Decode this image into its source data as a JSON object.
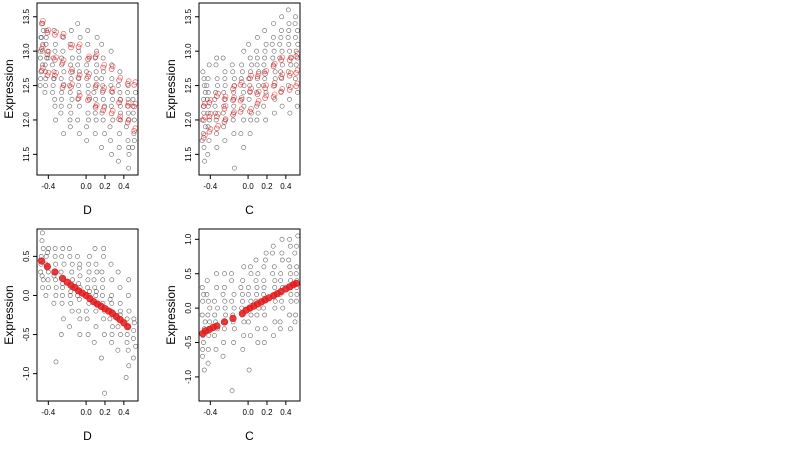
{
  "chart_data": [
    {
      "type": "scatter",
      "title": "",
      "xlabel": "D",
      "ylabel": "Expression",
      "xlim": [
        -0.52,
        0.55
      ],
      "ylim": [
        11.2,
        13.7
      ],
      "xticks": [
        -0.4,
        0.0,
        0.2,
        0.4
      ],
      "xtick_labels": [
        "-0.4",
        "0.0",
        "0.2",
        "0.4"
      ],
      "yticks": [
        11.5,
        12.0,
        12.5,
        13.0,
        13.5
      ],
      "ytick_labels": [
        "11.5",
        "12.0",
        "12.5",
        "13.0",
        "13.5"
      ],
      "series_colors": {
        "observed": "#333333",
        "fitted": "#e41a1c"
      },
      "observed_groups": [
        {
          "x": -0.47,
          "y": [
            12.8,
            13.0,
            13.2,
            13.4,
            12.6,
            13.1,
            12.9,
            13.3,
            12.7,
            13.0,
            12.5,
            13.2
          ]
        },
        {
          "x": -0.42,
          "y": [
            12.9,
            13.1,
            12.6,
            13.3,
            12.8,
            12.4,
            13.0,
            12.7,
            13.2,
            12.9,
            12.5
          ]
        },
        {
          "x": -0.34,
          "y": [
            12.6,
            12.9,
            13.1,
            12.4,
            12.2,
            12.8,
            13.3,
            12.5,
            12.7,
            13.0,
            12.3,
            12.0,
            12.6
          ]
        },
        {
          "x": -0.25,
          "y": [
            12.4,
            12.7,
            13.0,
            12.2,
            12.9,
            12.5,
            13.2,
            12.1,
            12.6,
            12.8,
            11.8,
            12.3
          ]
        },
        {
          "x": -0.16,
          "y": [
            12.3,
            12.6,
            12.9,
            13.1,
            12.0,
            12.5,
            12.8,
            12.2,
            13.3,
            12.4,
            12.7,
            11.9,
            12.1
          ]
        },
        {
          "x": -0.08,
          "y": [
            12.2,
            12.6,
            12.9,
            13.2,
            12.4,
            12.0,
            12.7,
            13.0,
            12.3,
            11.8,
            12.5,
            13.4,
            12.8
          ]
        },
        {
          "x": 0.02,
          "y": [
            12.1,
            12.5,
            12.8,
            13.1,
            12.3,
            12.6,
            11.9,
            12.9,
            12.4,
            13.3,
            12.0,
            12.7,
            11.7
          ]
        },
        {
          "x": 0.1,
          "y": [
            12.2,
            12.5,
            12.8,
            12.4,
            12.0,
            12.7,
            13.0,
            12.3,
            11.8,
            12.6,
            13.2,
            12.1,
            12.9
          ]
        },
        {
          "x": 0.18,
          "y": [
            12.0,
            12.3,
            12.6,
            12.9,
            11.8,
            12.5,
            12.2,
            13.1,
            12.4,
            11.6,
            12.7,
            12.1
          ]
        },
        {
          "x": 0.27,
          "y": [
            11.9,
            12.2,
            12.5,
            12.8,
            12.0,
            12.4,
            11.7,
            12.6,
            12.3,
            13.0,
            11.5
          ]
        },
        {
          "x": 0.35,
          "y": [
            11.8,
            12.1,
            12.4,
            12.7,
            11.6,
            12.2,
            12.0,
            12.5,
            11.4,
            12.3
          ]
        },
        {
          "x": 0.44,
          "y": [
            11.7,
            12.0,
            12.3,
            12.5,
            11.5,
            12.1,
            11.9,
            12.4,
            11.3,
            12.2,
            11.6
          ]
        },
        {
          "x": 0.51,
          "y": [
            11.8,
            12.1,
            12.3,
            11.6,
            12.0,
            12.4,
            11.7,
            12.2
          ]
        }
      ],
      "fitted_lines": [
        {
          "intercept": 12.95,
          "slope": -0.9
        },
        {
          "intercept": 12.6,
          "slope": -0.9
        },
        {
          "intercept": 12.3,
          "slope": -0.9
        }
      ]
    },
    {
      "type": "scatter",
      "title": "",
      "xlabel": "C",
      "ylabel": "Expression",
      "xlim": [
        -0.52,
        0.55
      ],
      "ylim": [
        11.2,
        13.7
      ],
      "xticks": [
        -0.4,
        0.0,
        0.2,
        0.4
      ],
      "xtick_labels": [
        "-0.4",
        "0.0",
        "0.2",
        "0.4"
      ],
      "yticks": [
        11.5,
        12.0,
        12.5,
        13.0,
        13.5
      ],
      "ytick_labels": [
        "11.5",
        "12.0",
        "12.5",
        "13.0",
        "13.5"
      ],
      "series_colors": {
        "observed": "#333333",
        "fitted": "#e41a1c"
      },
      "observed_groups": [
        {
          "x": -0.47,
          "y": [
            11.8,
            12.0,
            12.2,
            12.4,
            12.6,
            11.6,
            12.1,
            12.3,
            11.4,
            12.5,
            11.9,
            12.7,
            11.7
          ]
        },
        {
          "x": -0.42,
          "y": [
            11.9,
            12.1,
            12.3,
            12.5,
            11.7,
            12.2,
            12.4,
            11.5,
            12.6,
            12.0,
            12.8
          ]
        },
        {
          "x": -0.34,
          "y": [
            12.0,
            12.2,
            12.4,
            12.6,
            11.8,
            12.3,
            12.8,
            11.6,
            12.5,
            12.1,
            12.9
          ]
        },
        {
          "x": -0.25,
          "y": [
            12.1,
            12.3,
            12.5,
            12.7,
            11.9,
            12.4,
            12.0,
            12.9,
            11.7,
            12.6,
            12.2
          ]
        },
        {
          "x": -0.16,
          "y": [
            12.1,
            12.4,
            12.6,
            12.2,
            11.8,
            12.5,
            12.8,
            12.0,
            12.3,
            11.3,
            12.7
          ]
        },
        {
          "x": -0.06,
          "y": [
            12.2,
            12.4,
            12.6,
            12.8,
            12.0,
            12.5,
            13.0,
            11.8,
            12.3,
            12.7,
            11.6
          ]
        },
        {
          "x": 0.02,
          "y": [
            12.3,
            12.5,
            12.7,
            12.9,
            12.1,
            12.6,
            13.1,
            12.0,
            12.4,
            12.8,
            11.8
          ]
        },
        {
          "x": 0.1,
          "y": [
            12.4,
            12.6,
            12.8,
            13.0,
            12.2,
            12.7,
            13.2,
            12.1,
            12.5,
            12.9,
            12.0
          ]
        },
        {
          "x": 0.18,
          "y": [
            12.4,
            12.6,
            12.9,
            13.1,
            12.2,
            12.7,
            13.3,
            12.5,
            12.8,
            12.0,
            13.0
          ]
        },
        {
          "x": 0.27,
          "y": [
            12.5,
            12.8,
            13.0,
            13.2,
            12.3,
            12.9,
            13.4,
            12.6,
            12.1,
            13.1,
            12.7
          ]
        },
        {
          "x": 0.35,
          "y": [
            12.6,
            12.9,
            13.1,
            13.3,
            12.4,
            13.0,
            13.5,
            12.7,
            12.2,
            13.2,
            12.8
          ]
        },
        {
          "x": 0.44,
          "y": [
            12.7,
            13.0,
            13.2,
            13.4,
            12.5,
            13.1,
            13.6,
            12.8,
            12.3,
            13.3,
            12.9,
            12.1
          ]
        },
        {
          "x": 0.51,
          "y": [
            12.8,
            13.0,
            13.2,
            13.4,
            12.6,
            13.1,
            13.5,
            12.9,
            12.4,
            13.3,
            12.2
          ]
        }
      ],
      "fitted_lines": [
        {
          "intercept": 12.55,
          "slope": 0.75
        },
        {
          "intercept": 12.35,
          "slope": 0.75
        },
        {
          "intercept": 12.15,
          "slope": 0.75
        }
      ]
    },
    {
      "type": "scatter",
      "title": "",
      "xlabel": "D",
      "ylabel": "Expression",
      "xlim": [
        -0.52,
        0.55
      ],
      "ylim": [
        -1.35,
        0.85
      ],
      "xticks": [
        -0.4,
        0.0,
        0.2,
        0.4
      ],
      "xtick_labels": [
        "-0.4",
        "0.0",
        "0.2",
        "0.4"
      ],
      "yticks": [
        -1.0,
        -0.5,
        0.0,
        0.5
      ],
      "ytick_labels": [
        "-1.0",
        "-0.5",
        "0.0",
        "0.5"
      ],
      "series_colors": {
        "observed": "#333333",
        "fitted": "#e41a1c"
      },
      "observed_groups": [
        {
          "x": -0.47,
          "y": [
            0.6,
            0.4,
            0.2,
            0.7,
            0.3,
            0.5,
            0.1,
            0.8,
            0.45,
            0.25
          ]
        },
        {
          "x": -0.41,
          "y": [
            0.5,
            0.3,
            0.1,
            0.6,
            0.2,
            0.4,
            0.0,
            0.35,
            0.55
          ]
        },
        {
          "x": -0.33,
          "y": [
            0.4,
            0.2,
            0.0,
            0.5,
            0.1,
            0.3,
            -0.1,
            0.6,
            -0.85,
            0.25
          ]
        },
        {
          "x": -0.25,
          "y": [
            0.3,
            0.1,
            -0.1,
            0.5,
            0.2,
            0.0,
            0.4,
            -0.3,
            0.6,
            0.15,
            -0.5
          ]
        },
        {
          "x": -0.16,
          "y": [
            0.2,
            0.0,
            -0.2,
            0.4,
            0.1,
            0.3,
            -0.1,
            0.6,
            -0.4,
            0.5,
            0.05
          ]
        },
        {
          "x": -0.08,
          "y": [
            0.15,
            -0.05,
            0.35,
            0.0,
            0.25,
            -0.2,
            0.5,
            -0.5,
            0.1,
            0.4,
            -0.3
          ]
        },
        {
          "x": 0.02,
          "y": [
            0.1,
            -0.1,
            0.3,
            0.0,
            0.2,
            -0.3,
            0.5,
            -0.5,
            0.05,
            0.4,
            -0.2
          ]
        },
        {
          "x": 0.1,
          "y": [
            0.0,
            -0.2,
            0.2,
            0.4,
            -0.1,
            0.1,
            -0.4,
            0.6,
            -0.6,
            0.3,
            0.05
          ]
        },
        {
          "x": 0.18,
          "y": [
            -0.1,
            -0.3,
            0.1,
            0.3,
            -0.2,
            0.0,
            -0.5,
            0.5,
            -0.8,
            -1.25,
            0.2,
            0.6
          ]
        },
        {
          "x": 0.27,
          "y": [
            -0.2,
            -0.4,
            0.0,
            0.2,
            -0.3,
            -0.1,
            -0.6,
            0.4,
            -0.05,
            -0.5
          ]
        },
        {
          "x": 0.35,
          "y": [
            -0.3,
            -0.5,
            -0.1,
            0.1,
            -0.4,
            -0.2,
            -0.7,
            0.3,
            -0.25
          ]
        },
        {
          "x": 0.44,
          "y": [
            -0.4,
            -0.6,
            -0.2,
            0.0,
            -0.5,
            -0.3,
            -0.9,
            -1.05,
            0.2,
            -0.7
          ]
        },
        {
          "x": 0.51,
          "y": [
            -0.45,
            -0.65,
            -0.3,
            -0.55,
            -0.35,
            -0.8
          ]
        }
      ],
      "fitted_points": {
        "x": [
          -0.47,
          -0.41,
          -0.33,
          -0.25,
          -0.2,
          -0.16,
          -0.12,
          -0.08,
          -0.04,
          0.0,
          0.04,
          0.08,
          0.12,
          0.16,
          0.2,
          0.24,
          0.28,
          0.32,
          0.36,
          0.4,
          0.44
        ],
        "y": [
          0.44,
          0.37,
          0.3,
          0.22,
          0.17,
          0.13,
          0.1,
          0.06,
          0.03,
          0.0,
          -0.04,
          -0.08,
          -0.11,
          -0.14,
          -0.17,
          -0.2,
          -0.23,
          -0.27,
          -0.31,
          -0.35,
          -0.4
        ]
      }
    },
    {
      "type": "scatter",
      "title": "",
      "xlabel": "C",
      "ylabel": "Expression",
      "xlim": [
        -0.52,
        0.55
      ],
      "ylim": [
        -1.35,
        1.15
      ],
      "xticks": [
        -0.4,
        0.0,
        0.2,
        0.4
      ],
      "xtick_labels": [
        "-0.4",
        "0.0",
        "0.2",
        "0.4"
      ],
      "yticks": [
        -1.0,
        -0.5,
        0.0,
        0.5,
        1.0
      ],
      "ytick_labels": [
        "-1.0",
        "-0.5",
        "0.0",
        "0.5",
        "1.0"
      ],
      "series_colors": {
        "observed": "#333333",
        "fitted": "#e41a1c"
      },
      "observed_groups": [
        {
          "x": -0.47,
          "y": [
            -0.3,
            -0.5,
            -0.1,
            0.1,
            -0.7,
            -0.2,
            0.3,
            -0.9,
            -0.4,
            0.2,
            -0.6
          ]
        },
        {
          "x": -0.42,
          "y": [
            -0.2,
            -0.4,
            0.0,
            0.2,
            -0.6,
            -0.1,
            0.4,
            -0.8,
            -0.3,
            0.1
          ]
        },
        {
          "x": -0.34,
          "y": [
            -0.2,
            -0.4,
            0.0,
            0.3,
            -0.6,
            -0.1,
            0.5,
            -0.3,
            0.1
          ]
        },
        {
          "x": -0.25,
          "y": [
            -0.1,
            -0.3,
            0.1,
            0.3,
            -0.5,
            0.0,
            0.5,
            -0.7,
            -0.2,
            0.2
          ]
        },
        {
          "x": -0.16,
          "y": [
            -0.1,
            -0.3,
            0.1,
            0.4,
            -0.5,
            0.0,
            0.5,
            -0.2,
            0.2,
            -1.2
          ]
        },
        {
          "x": -0.06,
          "y": [
            0.0,
            -0.2,
            0.2,
            0.4,
            -0.4,
            0.1,
            0.6,
            -0.6,
            -0.1,
            0.3
          ]
        },
        {
          "x": 0.02,
          "y": [
            0.0,
            -0.2,
            0.2,
            0.5,
            -0.4,
            0.1,
            0.6,
            -0.9,
            -0.1,
            0.3
          ]
        },
        {
          "x": 0.1,
          "y": [
            0.1,
            -0.1,
            0.3,
            0.5,
            -0.3,
            0.2,
            0.7,
            -0.5,
            0.0,
            0.4
          ]
        },
        {
          "x": 0.18,
          "y": [
            0.1,
            -0.1,
            0.3,
            0.6,
            -0.3,
            0.2,
            0.7,
            -0.5,
            0.0,
            0.4,
            0.8
          ]
        },
        {
          "x": 0.27,
          "y": [
            0.2,
            0.0,
            0.4,
            0.6,
            -0.2,
            0.3,
            0.8,
            -0.4,
            0.1,
            0.5,
            0.9
          ]
        },
        {
          "x": 0.35,
          "y": [
            0.2,
            0.0,
            0.4,
            0.7,
            -0.2,
            0.3,
            0.8,
            -0.3,
            0.1,
            0.5,
            1.0
          ]
        },
        {
          "x": 0.44,
          "y": [
            0.3,
            0.1,
            0.5,
            0.7,
            -0.1,
            0.4,
            0.9,
            -0.3,
            0.2,
            0.6,
            1.0
          ]
        },
        {
          "x": 0.51,
          "y": [
            0.3,
            0.1,
            0.5,
            0.8,
            -0.1,
            0.4,
            0.9,
            -0.2,
            0.2,
            0.6,
            1.05
          ]
        }
      ],
      "fitted_points": {
        "x": [
          -0.48,
          -0.45,
          -0.41,
          -0.37,
          -0.33,
          -0.25,
          -0.16,
          -0.06,
          -0.02,
          0.02,
          0.06,
          0.1,
          0.14,
          0.18,
          0.22,
          0.27,
          0.31,
          0.35,
          0.4,
          0.44,
          0.48,
          0.51
        ],
        "y": [
          -0.37,
          -0.33,
          -0.31,
          -0.28,
          -0.26,
          -0.2,
          -0.15,
          -0.08,
          -0.03,
          0.0,
          0.03,
          0.06,
          0.09,
          0.12,
          0.15,
          0.18,
          0.21,
          0.24,
          0.28,
          0.31,
          0.34,
          0.36
        ]
      }
    }
  ]
}
